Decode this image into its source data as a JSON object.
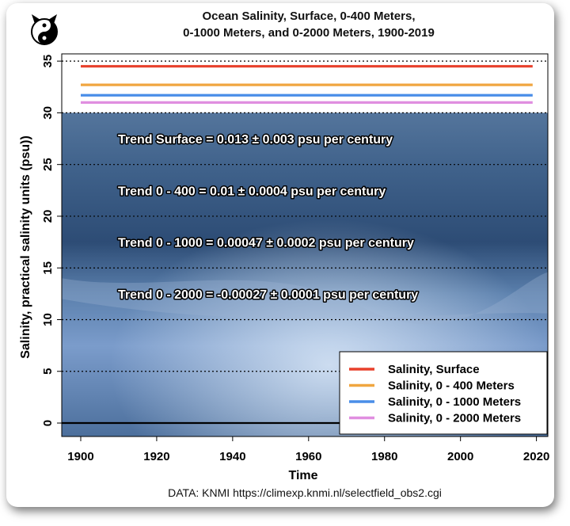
{
  "colors": {
    "surface": "#e8402b",
    "d400": "#f0a640",
    "d1000": "#4a8ee8",
    "d2000": "#e08ee0",
    "ocean_top": "#3a5a80",
    "ocean_deep": "#6f91bd",
    "sky": "#ffffff"
  },
  "logo": {
    "icon": "yin-yang-cat-logo"
  },
  "chart_data": {
    "type": "line",
    "title": "Ocean Salinity, Surface, 0-400 Meters,",
    "subtitle": "0-1000 Meters, and 0-2000 Meters, 1900-2019",
    "xlabel": "Time",
    "ylabel": "Salinity, practical salinity units (psu))",
    "xlim": [
      1895,
      2023
    ],
    "ylim": [
      -1.3,
      35.7
    ],
    "x_ticks": [
      1900,
      1920,
      1940,
      1960,
      1980,
      2000,
      2020
    ],
    "y_ticks": [
      0,
      5,
      10,
      15,
      20,
      25,
      30,
      35
    ],
    "grid": "horizontal dotted at y ticks",
    "legend_position": "bottom-right",
    "x": [
      1900,
      2019
    ],
    "series": [
      {
        "name": "Salinity, Surface",
        "color_key": "surface",
        "values": [
          34.5,
          34.5
        ]
      },
      {
        "name": "Salinity, 0 - 400 Meters",
        "color_key": "d400",
        "values": [
          32.7,
          32.7
        ]
      },
      {
        "name": "Salinity, 0 - 1000 Meters",
        "color_key": "d1000",
        "values": [
          31.7,
          31.7
        ]
      },
      {
        "name": "Salinity, 0 - 2000 Meters",
        "color_key": "d2000",
        "values": [
          31.0,
          31.0
        ]
      }
    ],
    "annotations": [
      {
        "text": "Trend Surface = 0.013 ± 0.003 psu per century",
        "y": 27.5
      },
      {
        "text": "Trend 0 - 400 = 0.01 ± 0.0004 psu per century",
        "y": 22.5
      },
      {
        "text": "Trend 0 - 1000 = 0.00047 ± 0.0002 psu per century",
        "y": 17.5
      },
      {
        "text": "Trend 0 - 2000 = -0.00027 ± 0.0001 psu per century",
        "y": 12.5
      }
    ],
    "baseline": 0
  },
  "footer": {
    "source": "DATA: KNMI https://climexp.knmi.nl/selectfield_obs2.cgi"
  }
}
